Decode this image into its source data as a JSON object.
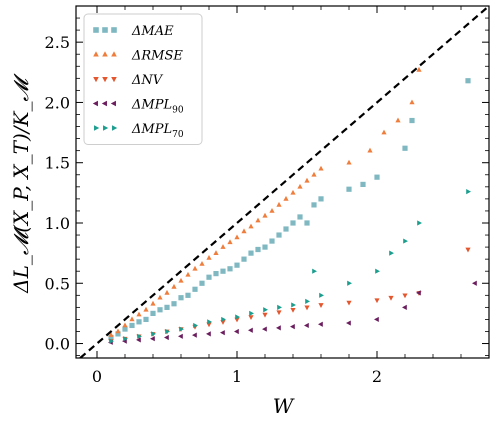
{
  "chart_data": {
    "type": "scatter",
    "xlabel": "W",
    "ylabel": "ΔL_𝓜(X_P, X_T)/K_𝓜",
    "xlim": [
      -0.15,
      2.8
    ],
    "ylim": [
      -0.12,
      2.8
    ],
    "xticks": [
      "0",
      "1",
      "2"
    ],
    "xtick_values": [
      0,
      1,
      2
    ],
    "yticks": [
      "0.0",
      "0.5",
      "1.0",
      "1.5",
      "2.0",
      "2.5"
    ],
    "ytick_values": [
      0,
      0.5,
      1.0,
      1.5,
      2.0,
      2.5
    ],
    "grid": false,
    "legend_position": "top-left",
    "reference_line": {
      "style": "dashed",
      "color": "#000000",
      "slope": 1
    },
    "series": [
      {
        "name": "ΔMAE",
        "label": "ΔMAE",
        "marker": "square",
        "color": "#7fb8c1",
        "points": [
          [
            0.1,
            0.05
          ],
          [
            0.15,
            0.08
          ],
          [
            0.2,
            0.12
          ],
          [
            0.25,
            0.15
          ],
          [
            0.3,
            0.18
          ],
          [
            0.35,
            0.2
          ],
          [
            0.4,
            0.25
          ],
          [
            0.45,
            0.28
          ],
          [
            0.5,
            0.3
          ],
          [
            0.55,
            0.33
          ],
          [
            0.6,
            0.38
          ],
          [
            0.65,
            0.4
          ],
          [
            0.7,
            0.45
          ],
          [
            0.75,
            0.5
          ],
          [
            0.8,
            0.55
          ],
          [
            0.85,
            0.58
          ],
          [
            0.9,
            0.6
          ],
          [
            0.95,
            0.62
          ],
          [
            1.0,
            0.65
          ],
          [
            1.05,
            0.7
          ],
          [
            1.1,
            0.75
          ],
          [
            1.15,
            0.78
          ],
          [
            1.2,
            0.8
          ],
          [
            1.25,
            0.85
          ],
          [
            1.3,
            0.9
          ],
          [
            1.35,
            0.95
          ],
          [
            1.4,
            1.0
          ],
          [
            1.45,
            1.05
          ],
          [
            1.5,
            1.0
          ],
          [
            1.55,
            1.15
          ],
          [
            1.6,
            1.2
          ],
          [
            1.8,
            1.28
          ],
          [
            1.9,
            1.32
          ],
          [
            2.0,
            1.38
          ],
          [
            2.2,
            1.62
          ],
          [
            2.25,
            1.85
          ],
          [
            2.65,
            2.18
          ]
        ]
      },
      {
        "name": "ΔRMSE",
        "label": "ΔRMSE",
        "marker": "triangle-up",
        "color": "#ef7d3c",
        "points": [
          [
            0.1,
            0.07
          ],
          [
            0.15,
            0.1
          ],
          [
            0.2,
            0.15
          ],
          [
            0.25,
            0.2
          ],
          [
            0.3,
            0.24
          ],
          [
            0.35,
            0.28
          ],
          [
            0.4,
            0.33
          ],
          [
            0.45,
            0.38
          ],
          [
            0.5,
            0.42
          ],
          [
            0.55,
            0.47
          ],
          [
            0.6,
            0.52
          ],
          [
            0.65,
            0.57
          ],
          [
            0.7,
            0.62
          ],
          [
            0.75,
            0.66
          ],
          [
            0.8,
            0.71
          ],
          [
            0.85,
            0.75
          ],
          [
            0.9,
            0.8
          ],
          [
            0.95,
            0.84
          ],
          [
            1.0,
            0.88
          ],
          [
            1.05,
            0.93
          ],
          [
            1.1,
            0.97
          ],
          [
            1.15,
            1.02
          ],
          [
            1.2,
            1.06
          ],
          [
            1.25,
            1.1
          ],
          [
            1.3,
            1.15
          ],
          [
            1.35,
            1.2
          ],
          [
            1.4,
            1.25
          ],
          [
            1.45,
            1.3
          ],
          [
            1.5,
            1.35
          ],
          [
            1.55,
            1.4
          ],
          [
            1.6,
            1.45
          ],
          [
            1.8,
            1.5
          ],
          [
            1.95,
            1.6
          ],
          [
            2.05,
            1.75
          ],
          [
            2.15,
            1.85
          ],
          [
            2.25,
            2.0
          ],
          [
            2.3,
            2.27
          ]
        ]
      },
      {
        "name": "ΔNV",
        "label": "ΔNV",
        "marker": "triangle-down",
        "color": "#e4572e",
        "points": [
          [
            0.1,
            0.02
          ],
          [
            0.2,
            0.04
          ],
          [
            0.3,
            0.06
          ],
          [
            0.4,
            0.08
          ],
          [
            0.5,
            0.1
          ],
          [
            0.6,
            0.12
          ],
          [
            0.7,
            0.14
          ],
          [
            0.8,
            0.16
          ],
          [
            0.9,
            0.18
          ],
          [
            1.0,
            0.2
          ],
          [
            1.1,
            0.22
          ],
          [
            1.2,
            0.24
          ],
          [
            1.3,
            0.26
          ],
          [
            1.4,
            0.28
          ],
          [
            1.5,
            0.3
          ],
          [
            1.6,
            0.32
          ],
          [
            1.8,
            0.34
          ],
          [
            2.0,
            0.36
          ],
          [
            2.1,
            0.38
          ],
          [
            2.2,
            0.4
          ],
          [
            2.3,
            0.42
          ],
          [
            2.65,
            0.78
          ]
        ]
      },
      {
        "name": "ΔMPL90",
        "label": "ΔMPL",
        "subscript": "90",
        "marker": "triangle-left",
        "color": "#6b1d5e",
        "points": [
          [
            0.1,
            0.01
          ],
          [
            0.2,
            0.02
          ],
          [
            0.3,
            0.03
          ],
          [
            0.4,
            0.04
          ],
          [
            0.5,
            0.05
          ],
          [
            0.6,
            0.06
          ],
          [
            0.7,
            0.07
          ],
          [
            0.8,
            0.08
          ],
          [
            0.9,
            0.09
          ],
          [
            1.0,
            0.1
          ],
          [
            1.1,
            0.11
          ],
          [
            1.2,
            0.12
          ],
          [
            1.3,
            0.13
          ],
          [
            1.4,
            0.14
          ],
          [
            1.5,
            0.15
          ],
          [
            1.6,
            0.16
          ],
          [
            1.8,
            0.17
          ],
          [
            2.0,
            0.2
          ],
          [
            2.2,
            0.3
          ],
          [
            2.3,
            0.42
          ],
          [
            2.7,
            0.5
          ]
        ]
      },
      {
        "name": "ΔMPL70",
        "label": "ΔMPL",
        "subscript": "70",
        "marker": "triangle-right",
        "color": "#1b9e8e",
        "points": [
          [
            0.1,
            0.02
          ],
          [
            0.2,
            0.04
          ],
          [
            0.3,
            0.06
          ],
          [
            0.4,
            0.08
          ],
          [
            0.5,
            0.1
          ],
          [
            0.6,
            0.12
          ],
          [
            0.7,
            0.15
          ],
          [
            0.8,
            0.18
          ],
          [
            0.9,
            0.2
          ],
          [
            1.0,
            0.22
          ],
          [
            1.1,
            0.25
          ],
          [
            1.2,
            0.28
          ],
          [
            1.3,
            0.3
          ],
          [
            1.4,
            0.32
          ],
          [
            1.5,
            0.35
          ],
          [
            1.55,
            0.6
          ],
          [
            1.6,
            0.4
          ],
          [
            1.8,
            0.5
          ],
          [
            2.0,
            0.6
          ],
          [
            2.1,
            0.75
          ],
          [
            2.2,
            0.85
          ],
          [
            2.3,
            1.0
          ],
          [
            2.65,
            1.26
          ]
        ]
      }
    ]
  }
}
